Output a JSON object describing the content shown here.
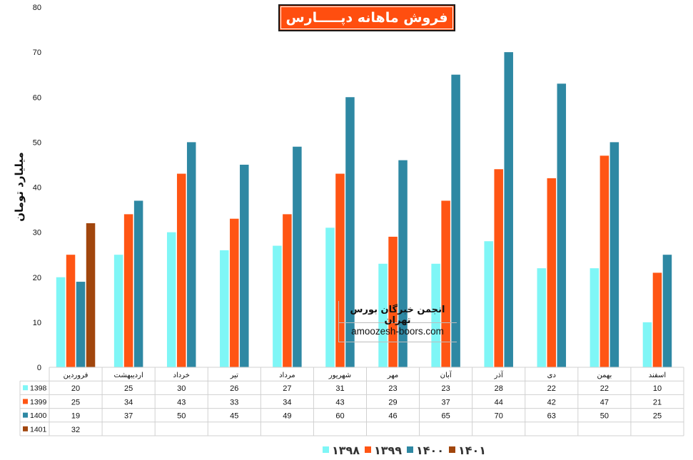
{
  "header": {
    "title": "فروش ماهانه دپـــــارس"
  },
  "watermark": {
    "title": "انجمن خبرگان بورس تهران",
    "url": "amoozesh-boors.com"
  },
  "colors": {
    "1398": "#7ff6f6",
    "1399": "#ff5514",
    "1400": "#2e88a3",
    "1401": "#a1460d"
  },
  "chart_data": {
    "type": "bar",
    "title": "فروش ماهانه دپـــــارس",
    "ylabel": "میلیارد تومان",
    "xlabel": "",
    "ylim": [
      0,
      80
    ],
    "yticks": [
      0,
      10,
      20,
      30,
      40,
      50,
      60,
      70,
      80
    ],
    "grid": false,
    "legend_position": "bottom",
    "categories": [
      "فروردین",
      "اردیبهشت",
      "خرداد",
      "تیر",
      "مرداد",
      "شهریور",
      "مهر",
      "آبان",
      "آذر",
      "دی",
      "بهمن",
      "اسفند"
    ],
    "series": [
      {
        "name": "1398",
        "legend_label": "۱۳۹۸",
        "color": "#7ff6f6",
        "values": [
          20,
          25,
          30,
          26,
          27,
          31,
          23,
          23,
          28,
          22,
          22,
          10
        ]
      },
      {
        "name": "1399",
        "legend_label": "۱۳۹۹",
        "color": "#ff5514",
        "values": [
          25,
          34,
          43,
          33,
          34,
          43,
          29,
          37,
          44,
          42,
          47,
          21
        ]
      },
      {
        "name": "1400",
        "legend_label": "۱۴۰۰",
        "color": "#2e88a3",
        "values": [
          19,
          37,
          50,
          45,
          49,
          60,
          46,
          65,
          70,
          63,
          50,
          25
        ]
      },
      {
        "name": "1401",
        "legend_label": "۱۴۰۱",
        "color": "#a1460d",
        "values": [
          32,
          null,
          null,
          null,
          null,
          null,
          null,
          null,
          null,
          null,
          null,
          null
        ]
      }
    ]
  }
}
